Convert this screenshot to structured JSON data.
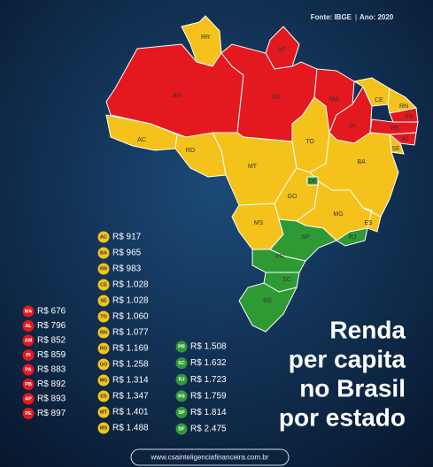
{
  "header": {
    "source": "Fonte: IBGE",
    "year": "Ano: 2020"
  },
  "title": {
    "lines": [
      "Renda",
      "per capita",
      "no Brasil",
      "por estado"
    ]
  },
  "website": "www.csainteligenciafinanceira.com.br",
  "map": {
    "states": [
      {
        "label": "RR",
        "color": "#f4c21b"
      },
      {
        "label": "AP",
        "color": "#e3191f"
      },
      {
        "label": "AM",
        "color": "#e3191f"
      },
      {
        "label": "PA",
        "color": "#e3191f"
      },
      {
        "label": "AC",
        "color": "#f4c21b"
      },
      {
        "label": "RO",
        "color": "#f4c21b"
      },
      {
        "label": "MT",
        "color": "#f4c21b"
      },
      {
        "label": "TO",
        "color": "#f4c21b"
      },
      {
        "label": "MA",
        "color": "#e3191f"
      },
      {
        "label": "PI",
        "color": "#e3191f"
      },
      {
        "label": "CE",
        "color": "#f4c21b"
      },
      {
        "label": "RN",
        "color": "#f4c21b"
      },
      {
        "label": "PB",
        "color": "#e3191f"
      },
      {
        "label": "PE",
        "color": "#e3191f"
      },
      {
        "label": "AL",
        "color": "#e3191f"
      },
      {
        "label": "SE",
        "color": "#f4c21b"
      },
      {
        "label": "BA",
        "color": "#f4c21b"
      },
      {
        "label": "GO",
        "color": "#f4c21b"
      },
      {
        "label": "DF",
        "color": "#2e9a34"
      },
      {
        "label": "MS",
        "color": "#f4c21b"
      },
      {
        "label": "MG",
        "color": "#f4c21b"
      },
      {
        "label": "ES",
        "color": "#f4c21b"
      },
      {
        "label": "RJ",
        "color": "#2e9a34"
      },
      {
        "label": "SP",
        "color": "#2e9a34"
      },
      {
        "label": "PR",
        "color": "#2e9a34"
      },
      {
        "label": "SC",
        "color": "#2e9a34"
      },
      {
        "label": "RS",
        "color": "#2e9a34"
      }
    ]
  },
  "legend": [
    {
      "color": "#e3191f",
      "items": [
        {
          "state": "MA",
          "value": "R$ 676"
        },
        {
          "state": "AL",
          "value": "R$ 796"
        },
        {
          "state": "AM",
          "value": "R$ 852"
        },
        {
          "state": "PI",
          "value": "R$ 859"
        },
        {
          "state": "PA",
          "value": "R$ 883"
        },
        {
          "state": "PB",
          "value": "R$ 892"
        },
        {
          "state": "AP",
          "value": "R$ 893"
        },
        {
          "state": "PE",
          "value": "R$ 897"
        }
      ]
    },
    {
      "color": "#f4c21b",
      "items": [
        {
          "state": "AC",
          "value": "R$ 917"
        },
        {
          "state": "BA",
          "value": "R$ 965"
        },
        {
          "state": "RR",
          "value": "R$ 983"
        },
        {
          "state": "CE",
          "value": "R$ 1.028"
        },
        {
          "state": "SE",
          "value": "R$ 1.028"
        },
        {
          "state": "TO",
          "value": "R$ 1.060"
        },
        {
          "state": "RN",
          "value": "R$ 1.077"
        },
        {
          "state": "RO",
          "value": "R$ 1.169"
        },
        {
          "state": "GO",
          "value": "R$ 1.258"
        },
        {
          "state": "MG",
          "value": "R$ 1.314"
        },
        {
          "state": "ES",
          "value": "R$ 1.347"
        },
        {
          "state": "MT",
          "value": "R$ 1.401"
        },
        {
          "state": "MS",
          "value": "R$ 1.488"
        }
      ]
    },
    {
      "color": "#2e9a34",
      "items": [
        {
          "state": "PR",
          "value": "R$ 1.508"
        },
        {
          "state": "SC",
          "value": "R$ 1.632"
        },
        {
          "state": "RJ",
          "value": "R$ 1.723"
        },
        {
          "state": "RS",
          "value": "R$ 1.759"
        },
        {
          "state": "SP",
          "value": "R$ 1.814"
        },
        {
          "state": "DF",
          "value": "R$ 2.475"
        }
      ]
    }
  ]
}
